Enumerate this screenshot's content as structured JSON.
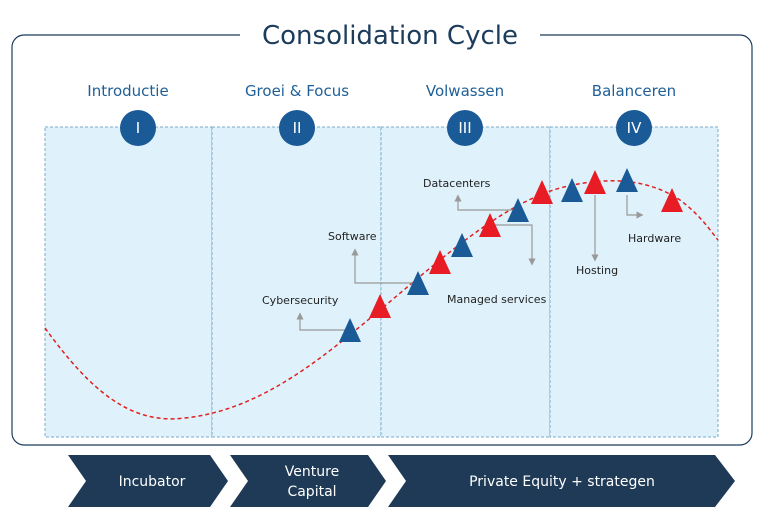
{
  "header": {
    "title": "Consolidation Cycle"
  },
  "phases": [
    {
      "label": "Introductie",
      "numeral": "I"
    },
    {
      "label": "Groei & Focus",
      "numeral": "II"
    },
    {
      "label": "Volwassen",
      "numeral": "III"
    },
    {
      "label": "Balanceren",
      "numeral": "IV"
    }
  ],
  "annotations": [
    "Cybersecurity",
    "Software",
    "Datacenters",
    "Managed services",
    "Hosting",
    "Hardware"
  ],
  "stages": [
    {
      "lines": [
        "Incubator"
      ]
    },
    {
      "lines": [
        "Venture",
        "Capital"
      ]
    },
    {
      "lines": [
        "Private Equity + strategen"
      ]
    }
  ]
}
